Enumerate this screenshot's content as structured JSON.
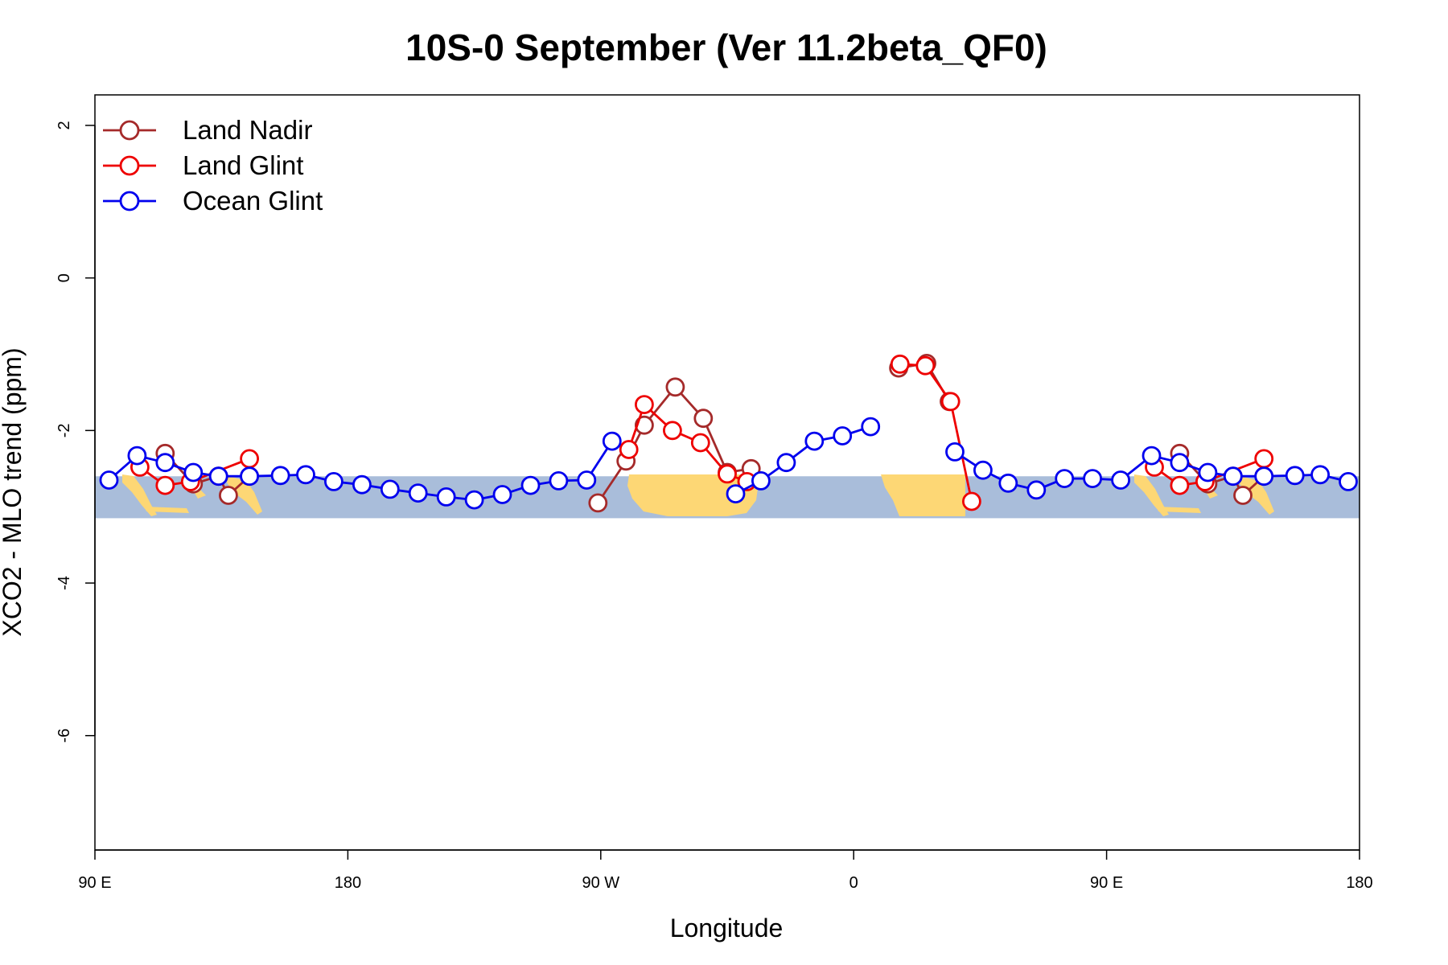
{
  "chart_data": {
    "type": "line",
    "title": "10S-0 September (Ver 11.2beta_QF0)",
    "xlabel": "Longitude",
    "ylabel": "XCO2 - MLO trend (ppm)",
    "xlim": [
      0,
      450
    ],
    "ylim": [
      -7.5,
      2.4
    ],
    "x_ticks": [
      {
        "value": 0,
        "label": "90 E"
      },
      {
        "value": 90,
        "label": "180"
      },
      {
        "value": 180,
        "label": "90 W"
      },
      {
        "value": 270,
        "label": "0"
      },
      {
        "value": 360,
        "label": "90 E"
      },
      {
        "value": 450,
        "label": "180"
      }
    ],
    "y_ticks": [
      {
        "value": 2,
        "label": "2"
      },
      {
        "value": 0,
        "label": "0"
      },
      {
        "value": -2,
        "label": "-2"
      },
      {
        "value": -4,
        "label": "-4"
      },
      {
        "value": -6,
        "label": "-6"
      }
    ],
    "legend_position": "top-left",
    "background_band": {
      "y_range": [
        -3.15,
        -2.6
      ],
      "ocean_color": "#a9bdda",
      "land_color": "#fdd775"
    },
    "series": [
      {
        "name": "Land Nadir",
        "color": "#a52a2a",
        "segments": [
          [
            [
              25,
              -2.3
            ],
            [
              35,
              -2.7
            ],
            [
              44,
              -2.6
            ],
            [
              47.5,
              -2.85
            ],
            [
              55,
              -2.6
            ]
          ],
          [
            [
              179,
              -2.95
            ],
            [
              189,
              -2.4
            ],
            [
              195.5,
              -1.93
            ],
            [
              206.5,
              -1.43
            ],
            [
              216.5,
              -1.84
            ],
            [
              225,
              -2.55
            ],
            [
              233.5,
              -2.5
            ]
          ],
          [
            [
              286,
              -1.18
            ],
            [
              296,
              -1.12
            ],
            [
              304,
              -1.62
            ]
          ],
          [
            [
              386,
              -2.3
            ],
            [
              396,
              -2.7
            ],
            [
              405,
              -2.6
            ],
            [
              408.5,
              -2.85
            ],
            [
              416,
              -2.6
            ]
          ]
        ]
      },
      {
        "name": "Land Glint",
        "color": "#ee0000",
        "segments": [
          [
            [
              16,
              -2.48
            ],
            [
              25,
              -2.72
            ],
            [
              34,
              -2.67
            ],
            [
              55,
              -2.37
            ]
          ],
          [
            [
              190,
              -2.25
            ],
            [
              195.5,
              -1.66
            ],
            [
              205.5,
              -2.0
            ],
            [
              215.5,
              -2.16
            ],
            [
              225,
              -2.57
            ],
            [
              232,
              -2.67
            ]
          ],
          [
            [
              286.5,
              -1.13
            ],
            [
              295.5,
              -1.15
            ],
            [
              304.5,
              -1.62
            ],
            [
              312,
              -2.93
            ]
          ],
          [
            [
              377,
              -2.48
            ],
            [
              386,
              -2.72
            ],
            [
              395,
              -2.67
            ],
            [
              416,
              -2.37
            ]
          ]
        ]
      },
      {
        "name": "Ocean Glint",
        "color": "#0000ee",
        "segments": [
          [
            [
              5,
              -2.65
            ],
            [
              15,
              -2.33
            ],
            [
              25,
              -2.42
            ],
            [
              35,
              -2.55
            ],
            [
              44,
              -2.6
            ],
            [
              55,
              -2.6
            ],
            [
              66,
              -2.59
            ],
            [
              75,
              -2.58
            ],
            [
              85,
              -2.67
            ],
            [
              95,
              -2.71
            ],
            [
              105,
              -2.77
            ],
            [
              115,
              -2.82
            ],
            [
              125,
              -2.87
            ],
            [
              135,
              -2.91
            ],
            [
              145,
              -2.84
            ],
            [
              155,
              -2.72
            ],
            [
              165,
              -2.66
            ],
            [
              175,
              -2.65
            ],
            [
              184,
              -2.14
            ]
          ],
          [
            [
              228,
              -2.83
            ],
            [
              237,
              -2.66
            ],
            [
              246,
              -2.42
            ],
            [
              256,
              -2.14
            ],
            [
              266,
              -2.07
            ],
            [
              276,
              -1.95
            ]
          ],
          [
            [
              306,
              -2.28
            ],
            [
              316,
              -2.52
            ],
            [
              325,
              -2.69
            ],
            [
              335,
              -2.78
            ],
            [
              345,
              -2.63
            ],
            [
              355,
              -2.63
            ],
            [
              365,
              -2.65
            ],
            [
              376,
              -2.33
            ],
            [
              386,
              -2.42
            ],
            [
              396,
              -2.55
            ],
            [
              405,
              -2.6
            ],
            [
              416,
              -2.6
            ],
            [
              427,
              -2.59
            ],
            [
              436,
              -2.58
            ],
            [
              446,
              -2.67
            ]
          ]
        ]
      }
    ]
  }
}
